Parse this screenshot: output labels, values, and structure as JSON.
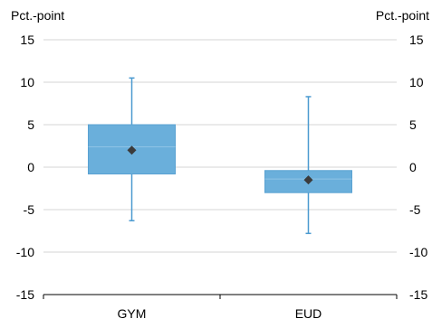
{
  "chart_data": {
    "type": "box",
    "left_axis_label": "Pct.-point",
    "right_axis_label": "Pct.-point",
    "categories": [
      "GYM",
      "EUD"
    ],
    "ylim": [
      -15,
      15
    ],
    "yticks": [
      15,
      10,
      5,
      0,
      -5,
      -10,
      -15
    ],
    "ytick_labels": [
      "15",
      "10",
      "5",
      "0",
      "-5",
      "-10",
      "-15"
    ],
    "grid": true,
    "boxes": [
      {
        "category": "GYM",
        "whisker_low": -6.3,
        "q1": -0.8,
        "median": 2.4,
        "q3": 5.0,
        "whisker_high": 10.5,
        "mean": 2.0
      },
      {
        "category": "EUD",
        "whisker_low": -7.8,
        "q1": -3.0,
        "median": -1.4,
        "q3": -0.4,
        "whisker_high": 8.3,
        "mean": -1.5
      }
    ],
    "colors": {
      "box_fill": "#6aafdb",
      "box_edge": "#5aa2d2",
      "median_line": "#8fc4e6",
      "whisker": "#4b9ad0",
      "mean_marker": "#3b3b3b",
      "grid": "#d6d6d6",
      "axis": "#000000"
    }
  }
}
